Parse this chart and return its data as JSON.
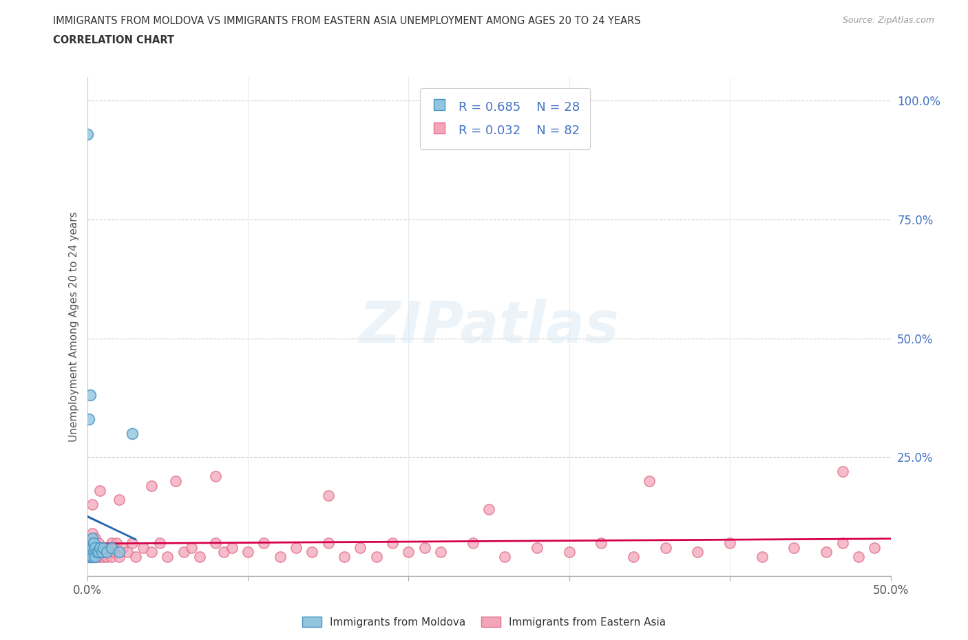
{
  "title_line1": "IMMIGRANTS FROM MOLDOVA VS IMMIGRANTS FROM EASTERN ASIA UNEMPLOYMENT AMONG AGES 20 TO 24 YEARS",
  "title_line2": "CORRELATION CHART",
  "source": "Source: ZipAtlas.com",
  "ylabel_label": "Unemployment Among Ages 20 to 24 years",
  "xlim": [
    0.0,
    0.5
  ],
  "ylim": [
    0.0,
    1.05
  ],
  "moldova_color": "#92c5de",
  "moldova_edge": "#4393c3",
  "eastern_asia_color": "#f4a6b8",
  "eastern_asia_edge": "#d6604d",
  "moldova_line_color": "#2166ac",
  "eastern_asia_line_color": "#d6004d",
  "R_moldova": 0.685,
  "N_moldova": 28,
  "R_eastern_asia": 0.032,
  "N_eastern_asia": 82,
  "watermark": "ZIPatlas",
  "legend_label_color": "#4472c4",
  "moldova_x": [
    0.0002,
    0.0005,
    0.0008,
    0.001,
    0.001,
    0.0012,
    0.0015,
    0.002,
    0.002,
    0.002,
    0.0025,
    0.003,
    0.003,
    0.003,
    0.004,
    0.004,
    0.005,
    0.005,
    0.006,
    0.007,
    0.008,
    0.009,
    0.01,
    0.012,
    0.015,
    0.02,
    0.028,
    0.001
  ],
  "moldova_y": [
    0.93,
    0.05,
    0.07,
    0.04,
    0.06,
    0.05,
    0.07,
    0.04,
    0.06,
    0.38,
    0.05,
    0.04,
    0.06,
    0.08,
    0.05,
    0.07,
    0.04,
    0.06,
    0.05,
    0.05,
    0.06,
    0.05,
    0.06,
    0.05,
    0.06,
    0.05,
    0.3,
    0.33
  ],
  "eastern_asia_x": [
    0.001,
    0.001,
    0.002,
    0.002,
    0.003,
    0.003,
    0.003,
    0.004,
    0.004,
    0.005,
    0.005,
    0.006,
    0.006,
    0.007,
    0.007,
    0.008,
    0.008,
    0.009,
    0.01,
    0.01,
    0.011,
    0.012,
    0.013,
    0.014,
    0.015,
    0.015,
    0.016,
    0.017,
    0.018,
    0.02,
    0.022,
    0.025,
    0.028,
    0.03,
    0.035,
    0.04,
    0.045,
    0.05,
    0.055,
    0.06,
    0.065,
    0.07,
    0.08,
    0.085,
    0.09,
    0.1,
    0.11,
    0.12,
    0.13,
    0.14,
    0.15,
    0.16,
    0.17,
    0.18,
    0.19,
    0.2,
    0.21,
    0.22,
    0.24,
    0.26,
    0.28,
    0.3,
    0.32,
    0.34,
    0.36,
    0.38,
    0.4,
    0.42,
    0.44,
    0.46,
    0.47,
    0.48,
    0.49,
    0.003,
    0.008,
    0.02,
    0.04,
    0.08,
    0.15,
    0.25,
    0.35,
    0.47
  ],
  "eastern_asia_y": [
    0.05,
    0.07,
    0.04,
    0.06,
    0.05,
    0.07,
    0.09,
    0.04,
    0.06,
    0.05,
    0.08,
    0.04,
    0.06,
    0.05,
    0.07,
    0.04,
    0.06,
    0.05,
    0.04,
    0.06,
    0.05,
    0.04,
    0.06,
    0.05,
    0.07,
    0.04,
    0.06,
    0.05,
    0.07,
    0.04,
    0.06,
    0.05,
    0.07,
    0.04,
    0.06,
    0.05,
    0.07,
    0.04,
    0.2,
    0.05,
    0.06,
    0.04,
    0.07,
    0.05,
    0.06,
    0.05,
    0.07,
    0.04,
    0.06,
    0.05,
    0.07,
    0.04,
    0.06,
    0.04,
    0.07,
    0.05,
    0.06,
    0.05,
    0.07,
    0.04,
    0.06,
    0.05,
    0.07,
    0.04,
    0.06,
    0.05,
    0.07,
    0.04,
    0.06,
    0.05,
    0.07,
    0.04,
    0.06,
    0.15,
    0.18,
    0.16,
    0.19,
    0.21,
    0.17,
    0.14,
    0.2,
    0.22
  ]
}
